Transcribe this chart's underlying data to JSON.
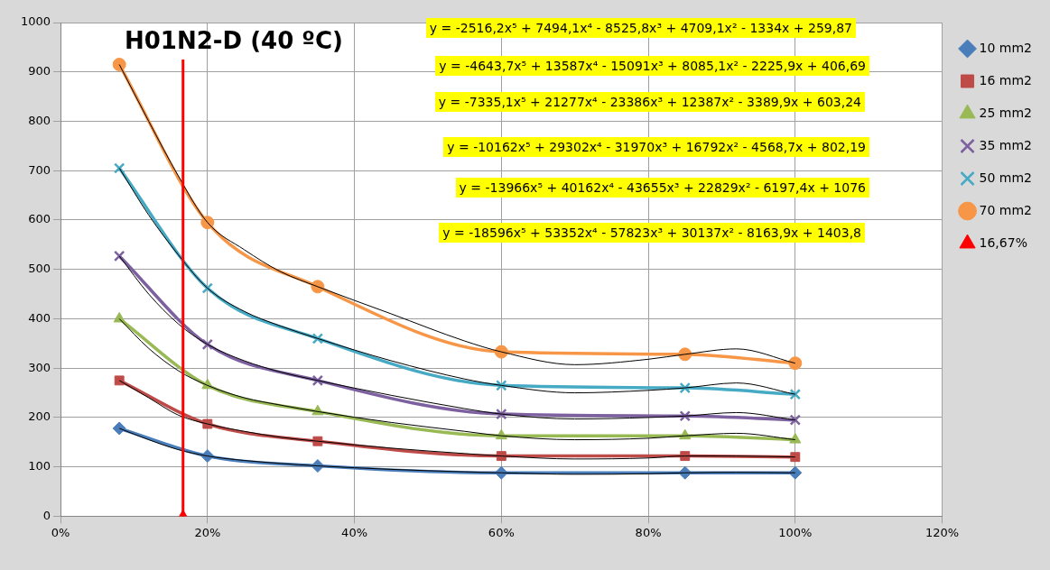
{
  "chart_data": {
    "type": "line",
    "title": "H01N2-D (40 ºC)",
    "x": [
      0.08,
      0.2,
      0.35,
      0.6,
      0.85,
      1.0
    ],
    "series": [
      {
        "name": "10 mm2",
        "color": "#4a7ebb",
        "marker": "diamond",
        "values": [
          178,
          122,
          102,
          88,
          88,
          88
        ]
      },
      {
        "name": "16 mm2",
        "color": "#be4b48",
        "marker": "square",
        "values": [
          275,
          187,
          152,
          122,
          122,
          120
        ]
      },
      {
        "name": "25 mm2",
        "color": "#98b954",
        "marker": "triangle",
        "values": [
          400,
          265,
          212,
          163,
          163,
          155
        ]
      },
      {
        "name": "35 mm2",
        "color": "#7d60a0",
        "marker": "cross",
        "values": [
          527,
          348,
          275,
          207,
          203,
          195
        ]
      },
      {
        "name": "50 mm2",
        "color": "#46aac5",
        "marker": "cross",
        "values": [
          705,
          462,
          360,
          265,
          260,
          247
        ]
      },
      {
        "name": "70 mm2",
        "color": "#f79646",
        "marker": "circle",
        "values": [
          915,
          595,
          465,
          333,
          328,
          310
        ]
      },
      {
        "name": "16,67%",
        "type": "scatter",
        "color": "#ff0000",
        "marker": "triangle",
        "x": [
          0.1667
        ],
        "values": [
          0
        ],
        "errors": [
          [
            0,
            925
          ]
        ]
      },
      {
        "type": "line",
        "color": "#000000",
        "marker": "none",
        "x": [
          0.08,
          0.12,
          0.16,
          0.2,
          0.25,
          0.3,
          0.35,
          0.45,
          0.55,
          0.6,
          0.7,
          0.8,
          0.85,
          0.92,
          1.0
        ],
        "values": [
          178,
          155,
          135,
          122,
          113,
          107,
          102,
          95,
          90,
          88,
          85,
          86,
          88,
          89,
          88
        ]
      },
      {
        "type": "line",
        "color": "#000000",
        "marker": "none",
        "x": [
          0.08,
          0.12,
          0.16,
          0.2,
          0.25,
          0.3,
          0.35,
          0.45,
          0.55,
          0.6,
          0.7,
          0.8,
          0.85,
          0.92,
          1.0
        ],
        "values": [
          275,
          240,
          205,
          187,
          172,
          160,
          152,
          138,
          127,
          122,
          116,
          118,
          122,
          122,
          120
        ]
      },
      {
        "type": "line",
        "color": "#000000",
        "marker": "none",
        "x": [
          0.08,
          0.12,
          0.16,
          0.2,
          0.25,
          0.3,
          0.35,
          0.45,
          0.55,
          0.6,
          0.7,
          0.8,
          0.85,
          0.92,
          1.0
        ],
        "values": [
          400,
          340,
          295,
          265,
          240,
          225,
          212,
          190,
          172,
          163,
          155,
          158,
          163,
          168,
          155
        ]
      },
      {
        "type": "line",
        "color": "#000000",
        "marker": "none",
        "x": [
          0.08,
          0.12,
          0.16,
          0.2,
          0.25,
          0.3,
          0.35,
          0.45,
          0.55,
          0.6,
          0.7,
          0.8,
          0.85,
          0.92,
          1.0
        ],
        "values": [
          527,
          450,
          390,
          348,
          315,
          292,
          275,
          245,
          218,
          207,
          197,
          200,
          203,
          210,
          195
        ]
      },
      {
        "type": "line",
        "color": "#000000",
        "marker": "none",
        "x": [
          0.08,
          0.12,
          0.16,
          0.2,
          0.25,
          0.3,
          0.35,
          0.45,
          0.55,
          0.6,
          0.7,
          0.8,
          0.85,
          0.92,
          1.0
        ],
        "values": [
          705,
          610,
          530,
          462,
          415,
          385,
          360,
          315,
          278,
          265,
          250,
          255,
          260,
          270,
          247
        ]
      },
      {
        "type": "line",
        "color": "#000000",
        "marker": "none",
        "x": [
          0.08,
          0.12,
          0.16,
          0.2,
          0.25,
          0.3,
          0.35,
          0.45,
          0.55,
          0.6,
          0.7,
          0.8,
          0.85,
          0.92,
          1.0
        ],
        "values": [
          915,
          800,
          690,
          595,
          540,
          495,
          465,
          410,
          355,
          333,
          307,
          318,
          328,
          339,
          310
        ]
      }
    ],
    "xlim": [
      0,
      1.2
    ],
    "xticks": [
      {
        "value": 0,
        "label": "0%"
      },
      {
        "value": 0.2,
        "label": "20%"
      },
      {
        "value": 0.4,
        "label": "40%"
      },
      {
        "value": 0.6,
        "label": "60%"
      },
      {
        "value": 0.8,
        "label": "80%"
      },
      {
        "value": 1.0,
        "label": "100%"
      },
      {
        "value": 1.2,
        "label": "120%"
      }
    ],
    "ylim": [
      0,
      1000
    ],
    "yticks": [
      0,
      100,
      200,
      300,
      400,
      500,
      600,
      700,
      800,
      900,
      1000
    ],
    "grid": true,
    "legend": "right",
    "annotations": [
      "y = -2516,2x⁵ + 7494,1x⁴ - 8525,8x³ + 4709,1x² - 1334x + 259,87",
      "y = -4643,7x⁵ + 13587x⁴ - 15091x³ + 8085,1x² - 2225,9x + 406,69",
      "y = -7335,1x⁵ + 21277x⁴ - 23386x³ + 12387x² - 3389,9x + 603,24",
      "y = -10162x⁵ + 29302x⁴ - 31970x³ + 16792x² - 4568,7x + 802,19",
      "y = -13966x⁵ + 40162x⁴ - 43655x³ + 22829x² - 6197,4x + 1076",
      "y = -18596x⁵ + 53352x⁴ - 57823x³ + 30137x² - 8163,9x + 1403,8"
    ]
  }
}
